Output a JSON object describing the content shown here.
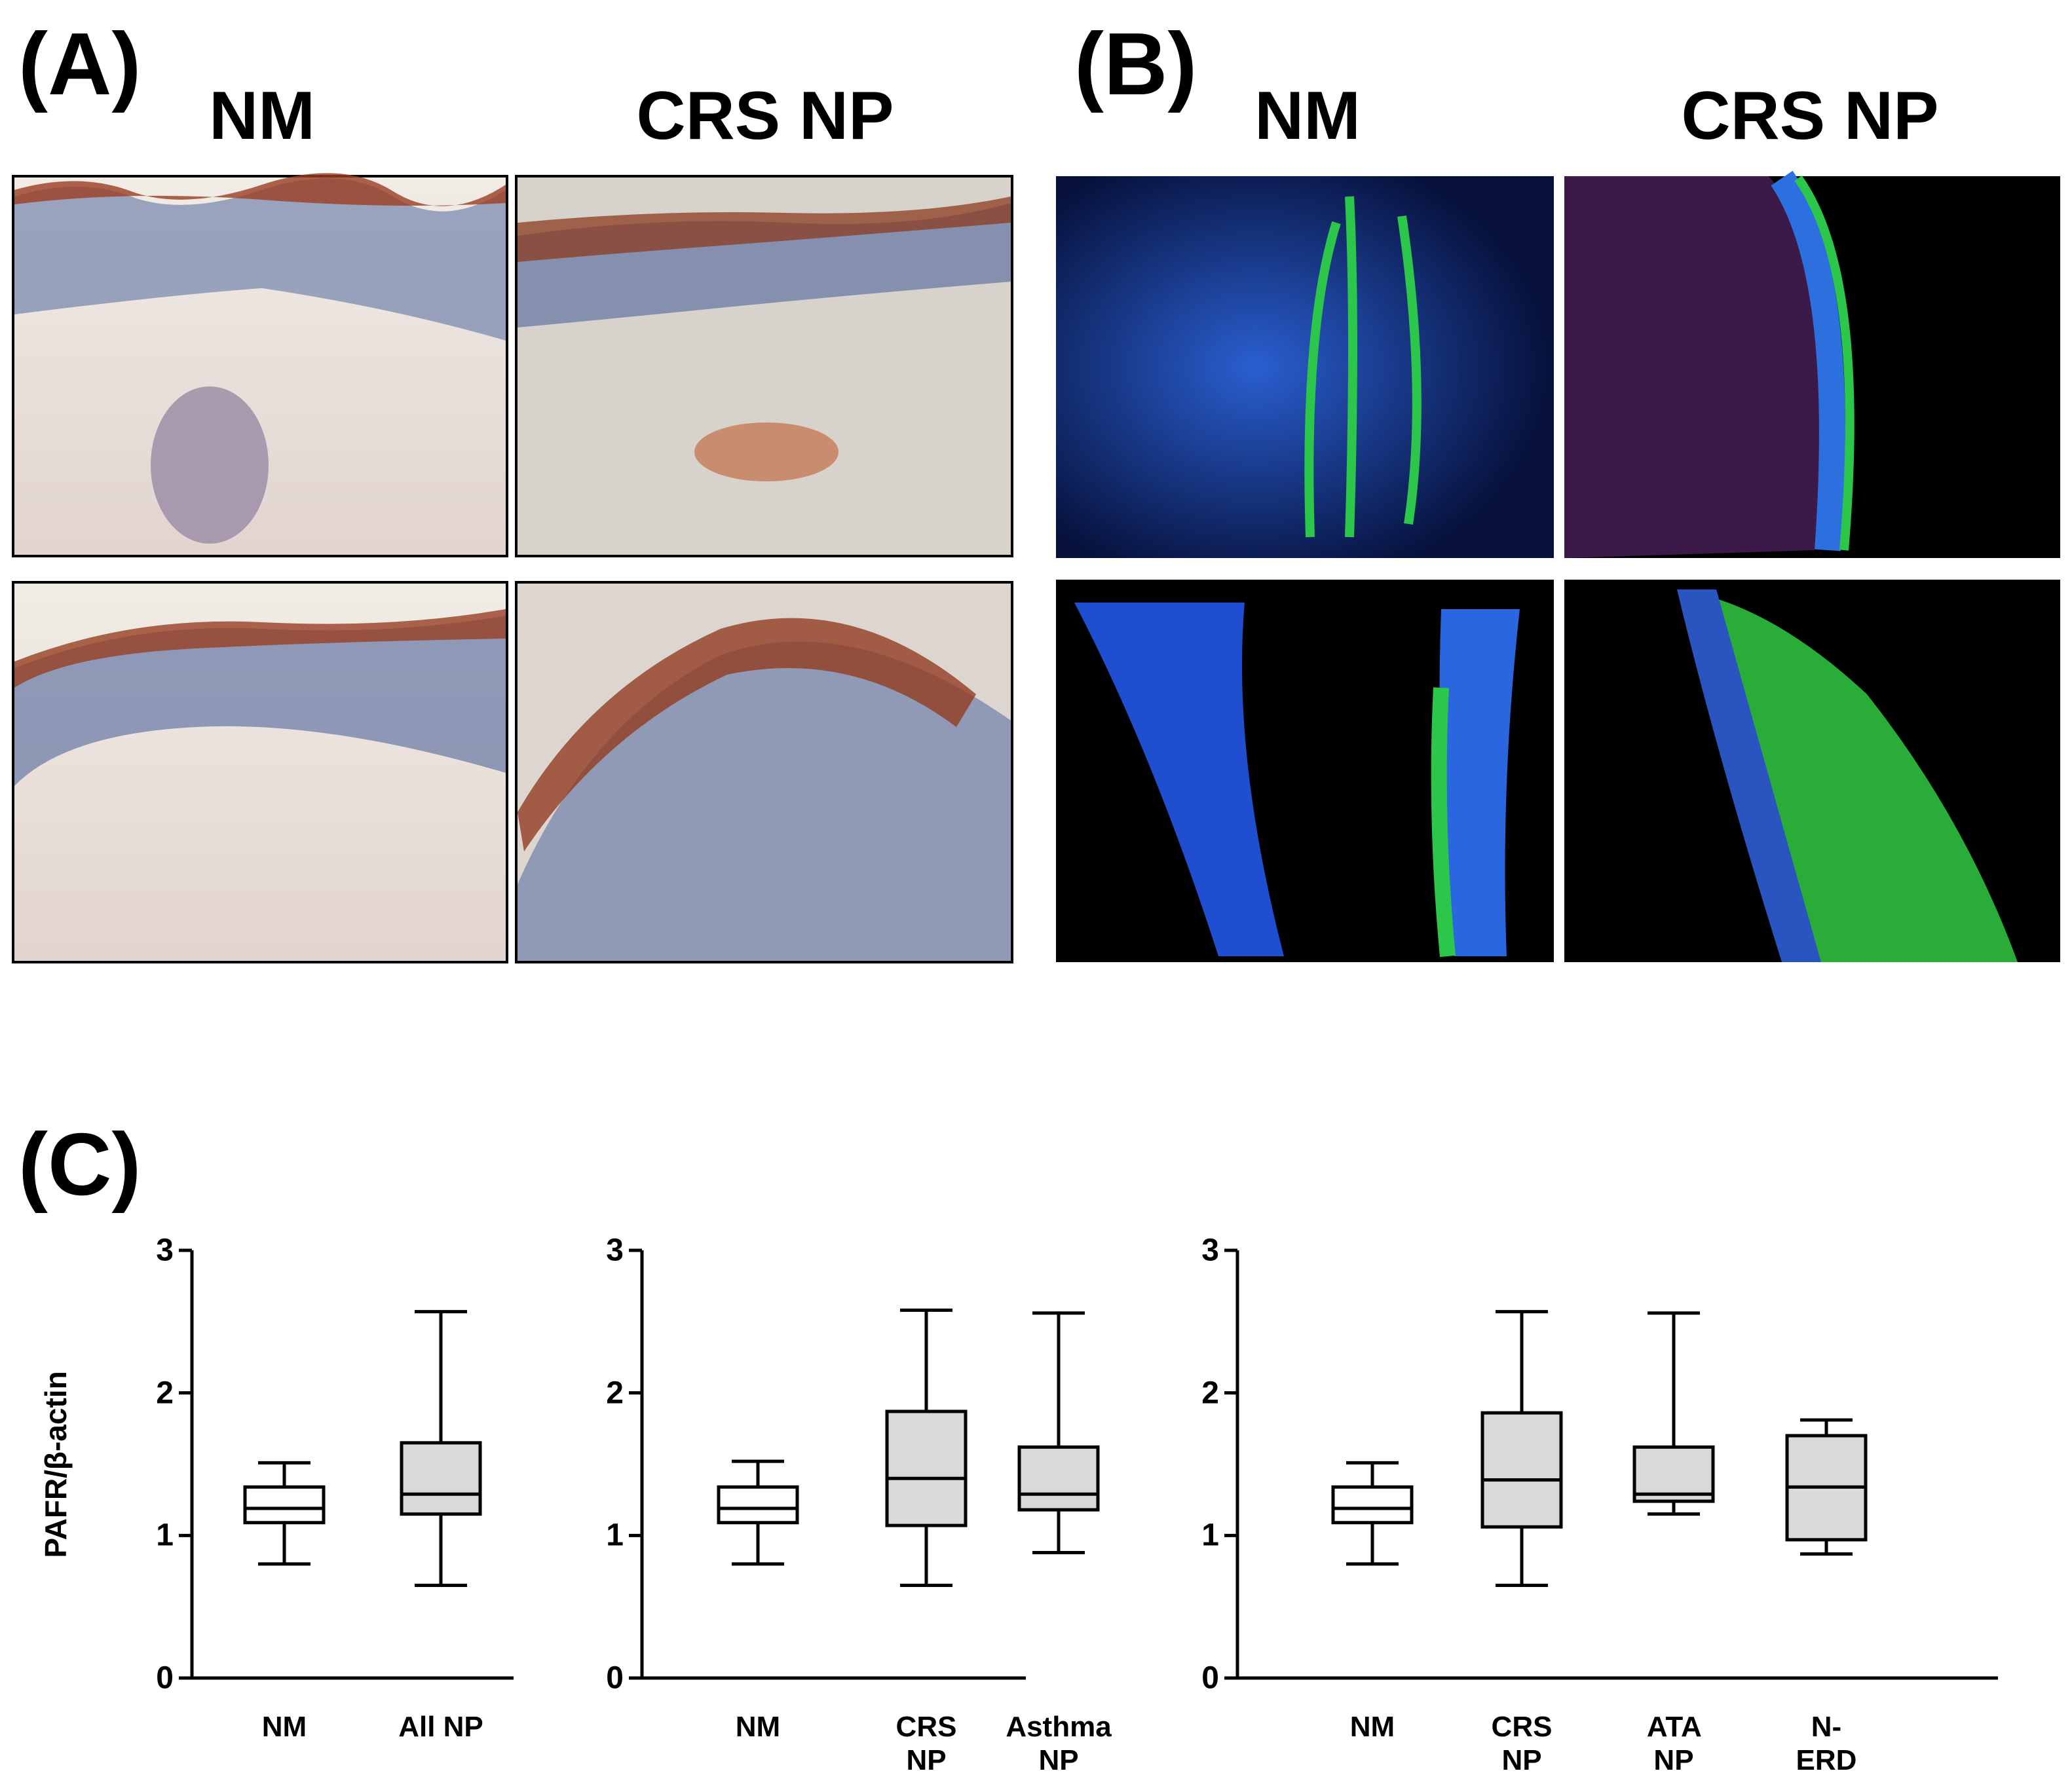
{
  "figure": {
    "panel_a": {
      "label": "(A)",
      "columns": [
        "NM",
        "CRS NP"
      ]
    },
    "panel_b": {
      "label": "(B)",
      "columns": [
        "NM",
        "CRS NP"
      ]
    },
    "panel_c": {
      "label": "(C)"
    }
  },
  "chart_data": [
    {
      "type": "box",
      "y_label": "PAFR/β-actin",
      "categories": [
        "NM",
        "All NP"
      ],
      "colors": [
        "#ffffff",
        "#d9d9d9"
      ],
      "values": [
        {
          "min": 0.8,
          "q1": 1.09,
          "median": 1.19,
          "q3": 1.34,
          "max": 1.51
        },
        {
          "min": 0.65,
          "q1": 1.15,
          "median": 1.29,
          "q3": 1.65,
          "max": 2.57
        }
      ],
      "ylim": [
        0,
        3
      ],
      "yticks": [
        0,
        1,
        2,
        3
      ]
    },
    {
      "type": "box",
      "categories": [
        "NM",
        "CRS NP",
        "Asthma NP"
      ],
      "colors": [
        "#ffffff",
        "#d9d9d9",
        "#d9d9d9"
      ],
      "values": [
        {
          "min": 0.8,
          "q1": 1.09,
          "median": 1.19,
          "q3": 1.34,
          "max": 1.52
        },
        {
          "min": 0.65,
          "q1": 1.07,
          "median": 1.4,
          "q3": 1.87,
          "max": 2.58
        },
        {
          "min": 0.88,
          "q1": 1.18,
          "median": 1.29,
          "q3": 1.62,
          "max": 2.56
        }
      ],
      "ylim": [
        0,
        3
      ],
      "yticks": [
        0,
        1,
        2,
        3
      ]
    },
    {
      "type": "box",
      "categories": [
        "NM",
        "CRS NP",
        "ATA NP",
        "N-ERD NP"
      ],
      "colors": [
        "#ffffff",
        "#d9d9d9",
        "#d9d9d9",
        "#d9d9d9"
      ],
      "values": [
        {
          "min": 0.8,
          "q1": 1.09,
          "median": 1.19,
          "q3": 1.34,
          "max": 1.51
        },
        {
          "min": 0.65,
          "q1": 1.06,
          "median": 1.39,
          "q3": 1.86,
          "max": 2.57
        },
        {
          "min": 1.15,
          "q1": 1.24,
          "median": 1.29,
          "q3": 1.62,
          "max": 2.56
        },
        {
          "min": 0.87,
          "q1": 0.97,
          "median": 1.34,
          "q3": 1.7,
          "max": 1.81
        }
      ],
      "ylim": [
        0,
        3
      ],
      "yticks": [
        0,
        1,
        2,
        3
      ]
    }
  ]
}
